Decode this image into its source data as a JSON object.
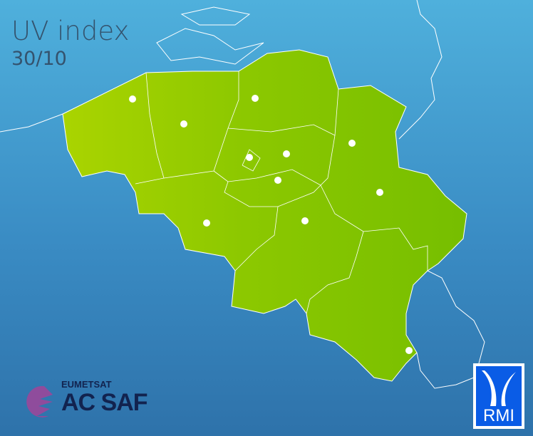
{
  "title": "UV index",
  "date": "30/10",
  "colors": {
    "low_green": "#a8d400",
    "high_green": "#78c000",
    "sea_top": "#4fb0dc",
    "sea_bottom": "#2e72aa",
    "title_text": "#34536e"
  },
  "logos": {
    "eumetsat": "EUMETSAT",
    "acsaf": "AC SAF",
    "rmi": "RMI"
  }
}
